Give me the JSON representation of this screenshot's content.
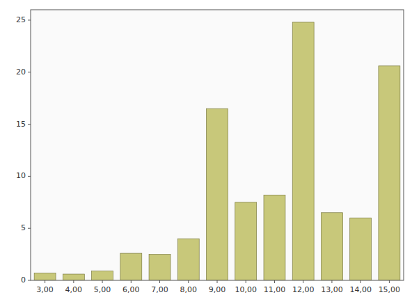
{
  "chart_data": {
    "type": "bar",
    "categories": [
      "3,00",
      "4,00",
      "5,00",
      "6,00",
      "7,00",
      "8,00",
      "9,00",
      "10,00",
      "11,00",
      "12,00",
      "13,00",
      "14,00",
      "15,00"
    ],
    "values": [
      0.7,
      0.6,
      0.9,
      2.6,
      2.5,
      4.0,
      16.5,
      7.5,
      8.2,
      24.8,
      6.5,
      6.0,
      20.6
    ],
    "color": "#C8C87A",
    "ylim": [
      0,
      26
    ],
    "yticks": [
      0,
      5,
      10,
      15,
      20,
      25
    ],
    "grid": false
  }
}
